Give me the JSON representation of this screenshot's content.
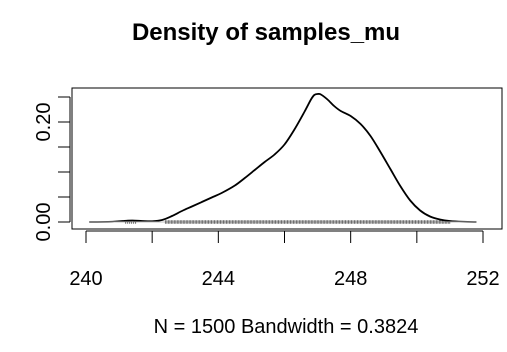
{
  "chart_data": {
    "type": "line",
    "title": "Density of samples_mu",
    "xlabel": "N = 1500   Bandwidth = 0.3824",
    "ylabel": "",
    "xlim": [
      240,
      252
    ],
    "ylim": [
      0,
      0.3
    ],
    "x_ticks": [
      "240",
      "244",
      "248",
      "252"
    ],
    "y_ticks": [
      "0.00",
      "0.20"
    ],
    "x_tick_values": [
      240,
      242,
      244,
      246,
      248,
      250,
      252
    ],
    "y_tick_values": [
      0.0,
      0.05,
      0.1,
      0.15,
      0.2,
      0.25
    ],
    "grid": false,
    "rug": true,
    "series": [
      {
        "x": [
          240.1,
          240.8,
          241.1,
          241.4,
          241.7,
          242.0,
          242.3,
          242.6,
          242.9,
          243.2,
          243.5,
          243.8,
          244.1,
          244.5,
          244.8,
          245.1,
          245.4,
          245.7,
          246.0,
          246.3,
          246.6,
          246.8,
          246.9,
          247.0,
          247.1,
          247.3,
          247.5,
          247.7,
          248.0,
          248.3,
          248.6,
          248.9,
          249.2,
          249.5,
          249.8,
          250.1,
          250.4,
          250.7,
          251.0,
          251.4,
          251.8
        ],
        "y": [
          0.0,
          0.0005,
          0.002,
          0.003,
          0.002,
          0.0015,
          0.004,
          0.012,
          0.022,
          0.031,
          0.04,
          0.049,
          0.058,
          0.073,
          0.088,
          0.104,
          0.12,
          0.135,
          0.155,
          0.185,
          0.22,
          0.245,
          0.254,
          0.256,
          0.255,
          0.245,
          0.232,
          0.222,
          0.212,
          0.196,
          0.172,
          0.14,
          0.106,
          0.072,
          0.043,
          0.023,
          0.011,
          0.005,
          0.002,
          0.0005,
          0.0
        ]
      }
    ]
  }
}
